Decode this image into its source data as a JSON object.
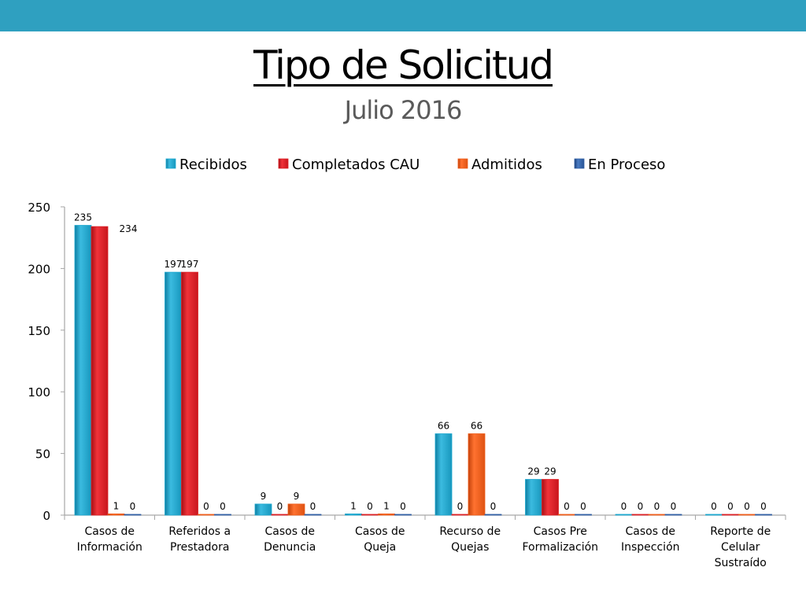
{
  "header": {
    "title": "Tipo de Solicitud",
    "subtitle": "Julio 2016"
  },
  "colors": {
    "band": "#2fa0c0",
    "recibidos": "#1aa7cf",
    "completados": "#dc1e24",
    "admitidos": "#ee5b17",
    "en_proceso": "#2f5ea3"
  },
  "chart_data": {
    "type": "bar",
    "title": "",
    "xlabel": "",
    "ylabel": "",
    "ylim": [
      0,
      250
    ],
    "yticks": [
      0,
      50,
      100,
      150,
      200,
      250
    ],
    "legend_position": "top",
    "grid": false,
    "categories": [
      [
        "Casos de",
        "Información"
      ],
      [
        "Referidos a",
        "Prestadora"
      ],
      [
        "Casos de",
        "Denuncia"
      ],
      [
        "Casos de",
        "Queja"
      ],
      [
        "Recurso de",
        "Quejas"
      ],
      [
        "Casos Pre",
        "Formalización"
      ],
      [
        "Casos de",
        "Inspección"
      ],
      [
        "Reporte de",
        "Celular",
        "Sustraído"
      ]
    ],
    "series": [
      {
        "name": "Recibidos",
        "values": [
          235,
          197,
          9,
          1,
          66,
          29,
          0,
          0
        ],
        "labels": [
          "235",
          "197",
          "9",
          "1",
          "66",
          "29",
          "0",
          "0"
        ]
      },
      {
        "name": "Completados CAU",
        "values": [
          234,
          197,
          0,
          0,
          0,
          29,
          0,
          0
        ],
        "labels": [
          "234",
          "197",
          "0",
          "0",
          "0",
          "29",
          "0",
          "0"
        ]
      },
      {
        "name": "Admitidos",
        "values": [
          1,
          0,
          9,
          1,
          66,
          0,
          0,
          0
        ],
        "labels": [
          "1",
          "0",
          "9",
          "1",
          "66",
          "0",
          "0",
          "0"
        ]
      },
      {
        "name": "En Proceso",
        "values": [
          0,
          0,
          0,
          0,
          0,
          0,
          0,
          0
        ],
        "labels": [
          "0",
          "0",
          "0",
          "0",
          "0",
          "0",
          "0",
          "0"
        ]
      }
    ]
  }
}
